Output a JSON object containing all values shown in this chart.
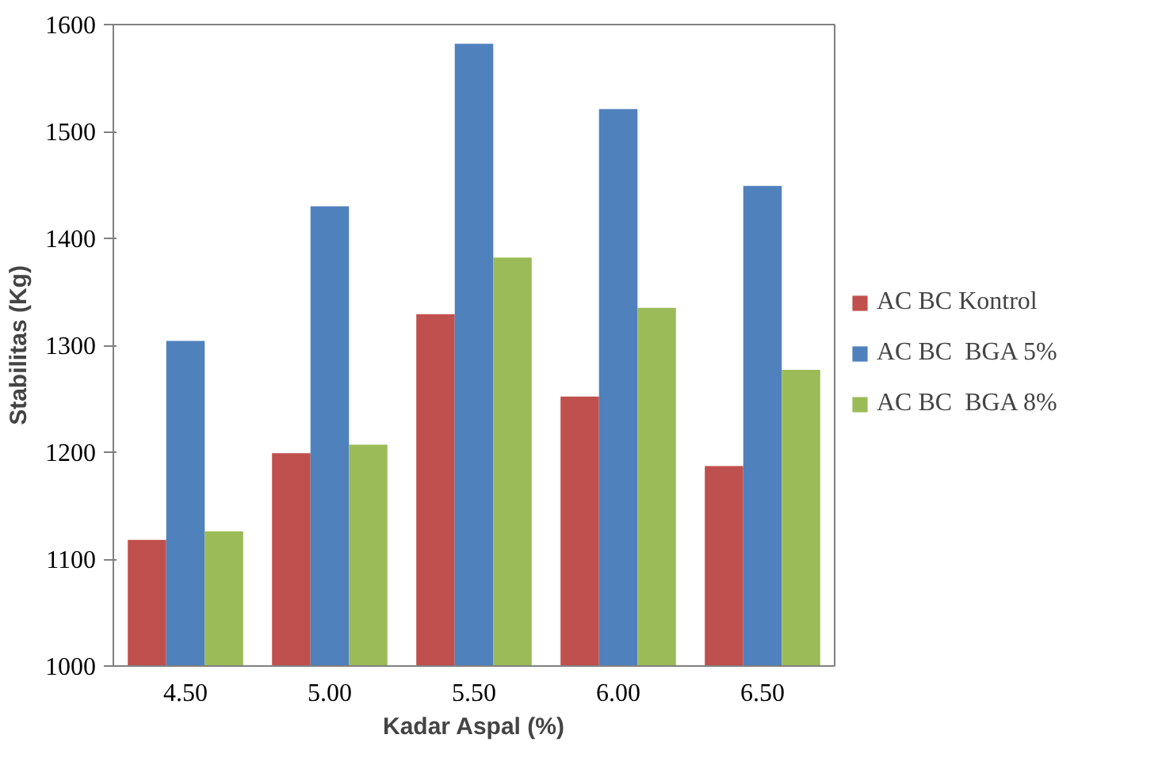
{
  "chart_data": {
    "type": "bar",
    "xlabel": "Kadar Aspal (%)",
    "ylabel": "Stabilitas (Kg)",
    "categories": [
      "4.50",
      "5.00",
      "5.50",
      "6.00",
      "6.50"
    ],
    "series": [
      {
        "name": "AC BC Kontrol",
        "color": "#c0504d",
        "values": [
          1118,
          1199,
          1329,
          1252,
          1187
        ]
      },
      {
        "name": "AC BC  BGA 5%",
        "color": "#4f81bd",
        "values": [
          1304,
          1430,
          1582,
          1521,
          1449
        ]
      },
      {
        "name": "AC BC  BGA 8%",
        "color": "#9bbb59",
        "values": [
          1126,
          1207,
          1382,
          1335,
          1277
        ]
      }
    ],
    "ylim": [
      1000,
      1600
    ],
    "yticks": [
      1000,
      1100,
      1200,
      1300,
      1400,
      1500,
      1600
    ],
    "grid": false,
    "legend": "right"
  }
}
